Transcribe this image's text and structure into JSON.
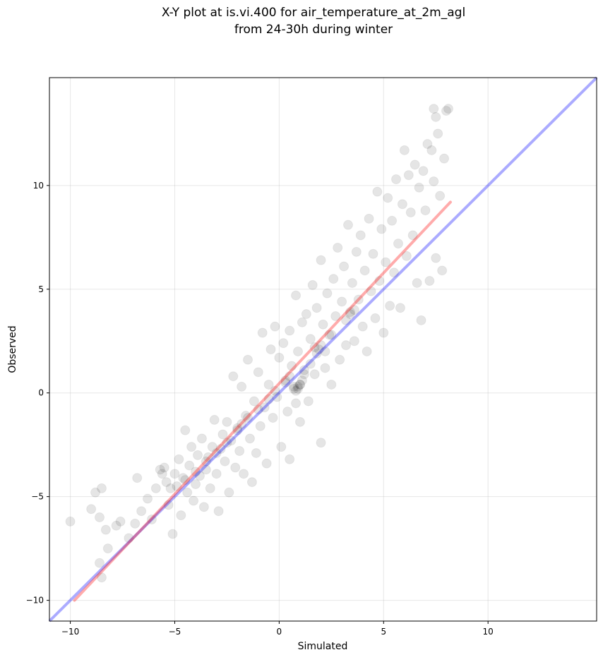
{
  "chart_data": {
    "type": "scatter",
    "title_line1": "X-Y plot at is.vi.400 for air_temperature_at_2m_agl",
    "title_line2": "from 24-30h during winter",
    "xlabel": "Simulated",
    "ylabel": "Observed",
    "xlim": [
      -11.0,
      15.2
    ],
    "ylim": [
      -11.0,
      15.2
    ],
    "xticks": [
      -10,
      -5,
      0,
      5,
      10
    ],
    "yticks": [
      -10,
      -5,
      0,
      5,
      10
    ],
    "xtick_labels": [
      "−10",
      "−5",
      "0",
      "5",
      "10"
    ],
    "ytick_labels": [
      "−10",
      "−5",
      "0",
      "5",
      "10"
    ],
    "grid": true,
    "identity_line": {
      "color": "#0000ff",
      "from": [
        -11.0,
        -11.0
      ],
      "to": [
        15.2,
        15.2
      ]
    },
    "regression_line": {
      "color": "#ff0000",
      "from": [
        -9.8,
        -10.0
      ],
      "to": [
        8.2,
        9.2
      ]
    },
    "point_color": "#000000",
    "points": [
      [
        -10.0,
        -6.2
      ],
      [
        -9.0,
        -5.6
      ],
      [
        -8.8,
        -4.8
      ],
      [
        -8.6,
        -6.0
      ],
      [
        -8.5,
        -4.6
      ],
      [
        -8.3,
        -6.6
      ],
      [
        -8.2,
        -7.5
      ],
      [
        -8.6,
        -8.2
      ],
      [
        -8.5,
        -8.9
      ],
      [
        -7.8,
        -6.4
      ],
      [
        -7.6,
        -6.2
      ],
      [
        -7.2,
        -7.0
      ],
      [
        -6.9,
        -6.3
      ],
      [
        -6.8,
        -4.1
      ],
      [
        -6.6,
        -5.7
      ],
      [
        -6.3,
        -5.1
      ],
      [
        -6.1,
        -6.1
      ],
      [
        -5.9,
        -4.6
      ],
      [
        -5.7,
        -3.7
      ],
      [
        -5.5,
        -3.6
      ],
      [
        -5.4,
        -4.3
      ],
      [
        -5.3,
        -5.4
      ],
      [
        -5.1,
        -6.8
      ],
      [
        -5.0,
        -3.9
      ],
      [
        -4.9,
        -4.5
      ],
      [
        -4.8,
        -3.2
      ],
      [
        -4.7,
        -5.9
      ],
      [
        -4.6,
        -4.1
      ],
      [
        -4.5,
        -1.8
      ],
      [
        -4.4,
        -4.8
      ],
      [
        -4.3,
        -3.5
      ],
      [
        -4.2,
        -2.6
      ],
      [
        -4.1,
        -5.2
      ],
      [
        -4.0,
        -4.4
      ],
      [
        -3.9,
        -3.0
      ],
      [
        -3.8,
        -4.0
      ],
      [
        -3.7,
        -2.2
      ],
      [
        -3.6,
        -5.5
      ],
      [
        -3.5,
        -3.7
      ],
      [
        -3.4,
        -3.1
      ],
      [
        -3.3,
        -4.6
      ],
      [
        -3.2,
        -2.6
      ],
      [
        -3.1,
        -1.3
      ],
      [
        -3.0,
        -3.9
      ],
      [
        -2.9,
        -5.7
      ],
      [
        -2.8,
        -2.7
      ],
      [
        -2.7,
        -2.0
      ],
      [
        -2.6,
        -3.3
      ],
      [
        -2.5,
        -1.4
      ],
      [
        -2.4,
        -4.8
      ],
      [
        -2.3,
        -2.3
      ],
      [
        -2.2,
        0.8
      ],
      [
        -2.1,
        -3.6
      ],
      [
        -2.0,
        -1.7
      ],
      [
        -1.9,
        -2.8
      ],
      [
        -1.8,
        0.3
      ],
      [
        -1.7,
        -3.9
      ],
      [
        -1.6,
        -1.1
      ],
      [
        -1.5,
        1.6
      ],
      [
        -1.4,
        -2.2
      ],
      [
        -1.3,
        -4.3
      ],
      [
        -1.2,
        -0.4
      ],
      [
        -1.1,
        -2.9
      ],
      [
        -1.0,
        1.0
      ],
      [
        -0.9,
        -1.6
      ],
      [
        -0.8,
        2.9
      ],
      [
        -0.7,
        -0.7
      ],
      [
        -0.6,
        -3.4
      ],
      [
        -0.5,
        0.4
      ],
      [
        -0.4,
        2.1
      ],
      [
        -0.3,
        -1.2
      ],
      [
        -0.2,
        3.2
      ],
      [
        -0.1,
        -0.2
      ],
      [
        0.0,
        1.7
      ],
      [
        0.1,
        -2.6
      ],
      [
        0.2,
        2.4
      ],
      [
        0.3,
        0.6
      ],
      [
        0.4,
        -0.9
      ],
      [
        0.5,
        3.0
      ],
      [
        0.5,
        -3.2
      ],
      [
        0.6,
        1.3
      ],
      [
        0.7,
        0.2
      ],
      [
        0.8,
        4.7
      ],
      [
        0.8,
        -0.5
      ],
      [
        0.9,
        0.3
      ],
      [
        0.9,
        2.0
      ],
      [
        1.0,
        0.4
      ],
      [
        1.0,
        -1.4
      ],
      [
        1.1,
        3.4
      ],
      [
        1.2,
        1.1
      ],
      [
        1.3,
        3.8
      ],
      [
        1.4,
        -0.4
      ],
      [
        1.5,
        2.6
      ],
      [
        1.6,
        5.2
      ],
      [
        1.7,
        0.9
      ],
      [
        1.8,
        4.1
      ],
      [
        1.9,
        2.1
      ],
      [
        2.0,
        -2.4
      ],
      [
        2.0,
        6.4
      ],
      [
        2.1,
        3.3
      ],
      [
        2.2,
        1.2
      ],
      [
        2.3,
        4.8
      ],
      [
        2.4,
        2.8
      ],
      [
        2.5,
        0.4
      ],
      [
        2.6,
        5.5
      ],
      [
        2.7,
        3.7
      ],
      [
        2.8,
        7.0
      ],
      [
        2.9,
        1.6
      ],
      [
        3.0,
        4.4
      ],
      [
        3.1,
        6.1
      ],
      [
        3.2,
        2.3
      ],
      [
        3.3,
        8.1
      ],
      [
        3.4,
        3.9
      ],
      [
        3.5,
        5.3
      ],
      [
        3.6,
        2.5
      ],
      [
        3.7,
        6.8
      ],
      [
        3.8,
        4.5
      ],
      [
        3.9,
        7.6
      ],
      [
        4.0,
        3.2
      ],
      [
        4.1,
        5.9
      ],
      [
        4.2,
        2.0
      ],
      [
        4.3,
        8.4
      ],
      [
        4.4,
        4.9
      ],
      [
        4.5,
        6.7
      ],
      [
        4.6,
        3.6
      ],
      [
        4.7,
        9.7
      ],
      [
        4.8,
        5.4
      ],
      [
        4.9,
        7.9
      ],
      [
        5.0,
        2.9
      ],
      [
        5.1,
        6.3
      ],
      [
        5.2,
        9.4
      ],
      [
        5.3,
        4.2
      ],
      [
        5.4,
        8.3
      ],
      [
        5.5,
        5.8
      ],
      [
        5.6,
        10.3
      ],
      [
        5.7,
        7.2
      ],
      [
        5.8,
        4.1
      ],
      [
        5.9,
        9.1
      ],
      [
        6.0,
        11.7
      ],
      [
        6.1,
        6.6
      ],
      [
        6.2,
        10.5
      ],
      [
        6.3,
        8.7
      ],
      [
        6.4,
        7.6
      ],
      [
        6.5,
        11.0
      ],
      [
        6.6,
        5.3
      ],
      [
        6.7,
        9.9
      ],
      [
        6.8,
        3.5
      ],
      [
        6.9,
        10.7
      ],
      [
        7.0,
        8.8
      ],
      [
        7.1,
        12.0
      ],
      [
        7.2,
        5.4
      ],
      [
        7.3,
        11.7
      ],
      [
        7.4,
        10.2
      ],
      [
        7.5,
        13.3
      ],
      [
        7.5,
        6.5
      ],
      [
        7.6,
        12.5
      ],
      [
        7.7,
        9.5
      ],
      [
        7.8,
        5.9
      ],
      [
        7.9,
        11.3
      ],
      [
        8.0,
        13.6
      ],
      [
        8.1,
        13.7
      ],
      [
        7.4,
        13.7
      ]
    ],
    "cluster_points": [
      [
        0.9,
        0.2
      ],
      [
        1.0,
        0.4
      ],
      [
        0.8,
        0.1
      ],
      [
        1.1,
        0.6
      ],
      [
        0.7,
        0.3
      ],
      [
        1.2,
        0.9
      ],
      [
        1.5,
        1.4
      ],
      [
        1.8,
        1.9
      ],
      [
        2.0,
        2.3
      ],
      [
        2.2,
        2.0
      ],
      [
        2.5,
        2.8
      ],
      [
        3.2,
        3.5
      ],
      [
        3.4,
        3.8
      ],
      [
        3.6,
        4.0
      ],
      [
        -4.5,
        -4.2
      ],
      [
        -4.0,
        -3.8
      ],
      [
        -3.5,
        -3.3
      ],
      [
        -2.5,
        -2.4
      ],
      [
        -2.0,
        -1.8
      ],
      [
        -1.5,
        -1.2
      ],
      [
        -1.0,
        -0.8
      ],
      [
        -0.5,
        -0.3
      ],
      [
        0.3,
        0.5
      ],
      [
        0.5,
        0.8
      ],
      [
        -5.2,
        -4.6
      ],
      [
        -5.6,
        -3.9
      ],
      [
        -3.0,
        -2.9
      ],
      [
        -1.8,
        -1.5
      ],
      [
        -0.2,
        0.1
      ],
      [
        1.7,
        2.2
      ]
    ]
  }
}
